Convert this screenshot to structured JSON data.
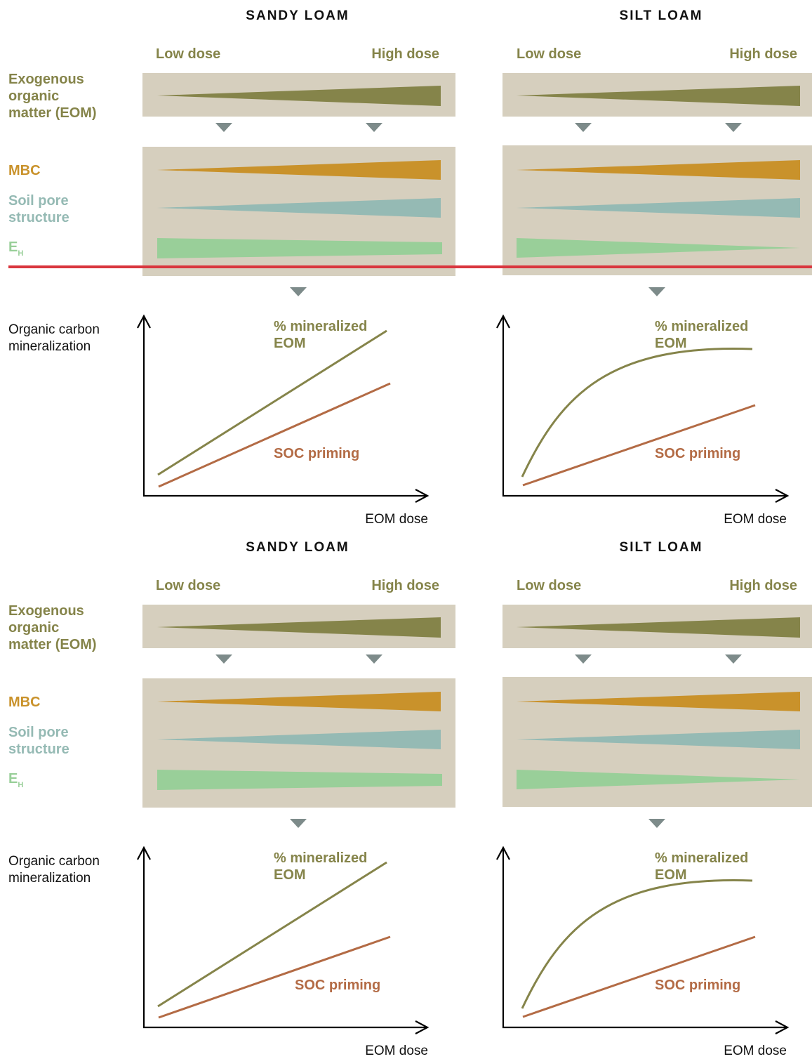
{
  "colors": {
    "eom": "#85844a",
    "mbc": "#c9922b",
    "pore": "#95bab4",
    "eh": "#99cf99",
    "panel": "#d6cfbe",
    "arrow": "#7d8b8a",
    "soc": "#b36b45",
    "red_line": "#d9363e",
    "axis": "#000000"
  },
  "row_labels": {
    "eom_line1": "Exogenous",
    "eom_line2": "organic",
    "eom_line3": "matter (EOM)",
    "mbc": "MBC",
    "pore_line1": "Soil pore",
    "pore_line2": "structure",
    "eh_main": "E",
    "eh_sub": "H",
    "ocm_line1": "Organic carbon",
    "ocm_line2": "mineralization"
  },
  "dose": {
    "low": "Low dose",
    "high": "High dose"
  },
  "curve_labels": {
    "mineralized_line1": "% mineralized",
    "mineralized_line2": "EOM",
    "soc": "SOC priming",
    "x_axis": "EOM dose"
  },
  "soils": [
    {
      "name": "SANDY LOAM",
      "mbc": "increase",
      "pore_structure": "increase",
      "eh": "slight decrease",
      "mineralized_eom": "linear",
      "soc_priming": "linear"
    },
    {
      "name": "SILT LOAM",
      "mbc": "increase",
      "pore_structure": "increase",
      "eh": "strong decrease",
      "mineralized_eom": "saturating",
      "soc_priming": "linear"
    }
  ]
}
